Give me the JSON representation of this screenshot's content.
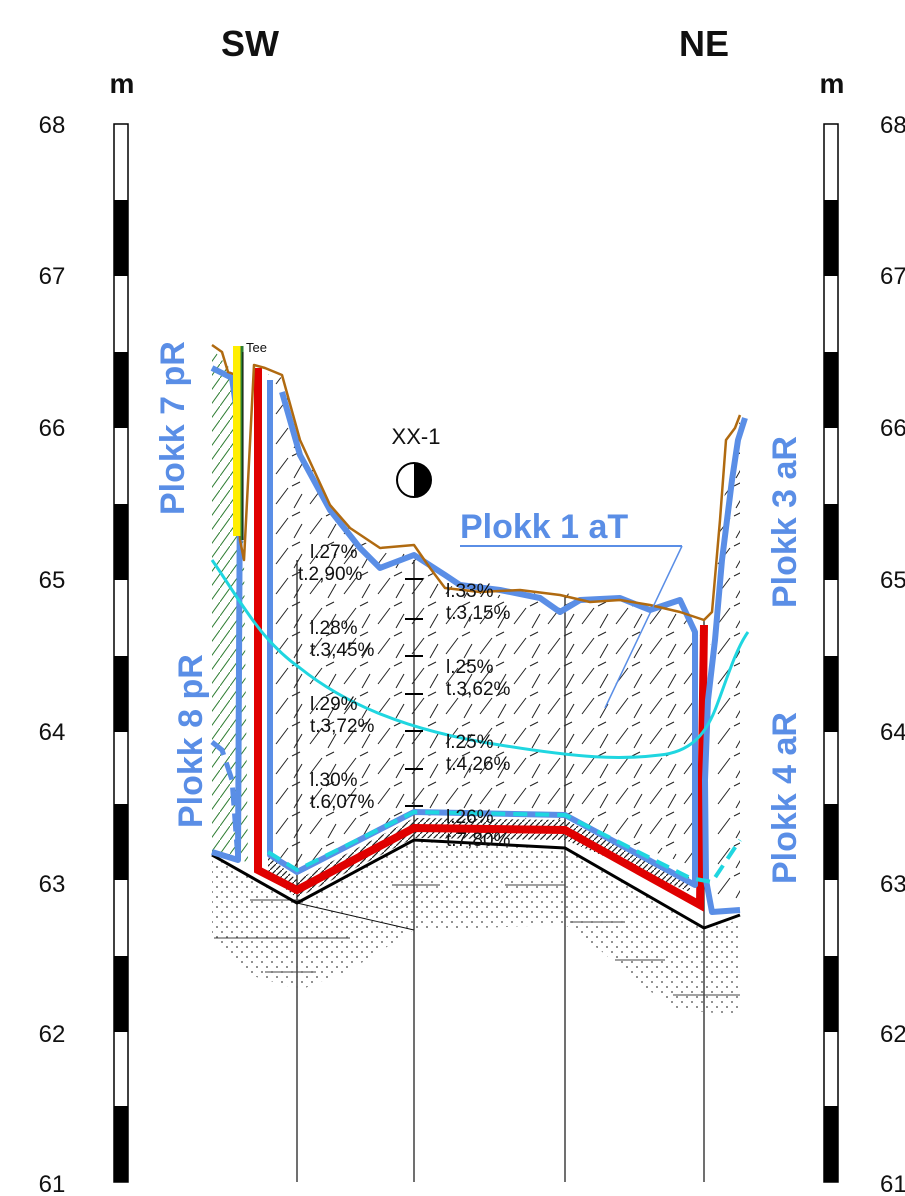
{
  "directions": {
    "left": "SW",
    "right": "NE"
  },
  "unit": "m",
  "elevations": [
    "68",
    "67",
    "66",
    "65",
    "64",
    "63",
    "62",
    "61"
  ],
  "point_label": "XX-1",
  "note_tee": "Tee",
  "blocks": {
    "plokk7": "Plokk 7 pR",
    "plokk8": "Plokk 8 pR",
    "plokk1": "Plokk 1 aT",
    "plokk3": "Plokk 3 aR",
    "plokk4": "Plokk 4 aR"
  },
  "annotations_left": [
    {
      "l": "l.27%",
      "t": "t.2,90%"
    },
    {
      "l": "l.28%",
      "t": "t.3,45%"
    },
    {
      "l": "l.29%",
      "t": "t.3,72%"
    },
    {
      "l": "l.30%",
      "t": "t.6,07%"
    }
  ],
  "annotations_right": [
    {
      "l": "l.33%",
      "t": "t.3,15%"
    },
    {
      "l": "l.25%",
      "t": "t.3,62%"
    },
    {
      "l": "l.25%",
      "t": "t.4,26%"
    },
    {
      "l": "l.26%",
      "t": "t.7,80%"
    }
  ],
  "colors": {
    "blue": "#5a8ee6",
    "red": "#e00000",
    "cyan": "#1fd6e0",
    "brown": "#b06a10",
    "green": "#2e7d32"
  }
}
